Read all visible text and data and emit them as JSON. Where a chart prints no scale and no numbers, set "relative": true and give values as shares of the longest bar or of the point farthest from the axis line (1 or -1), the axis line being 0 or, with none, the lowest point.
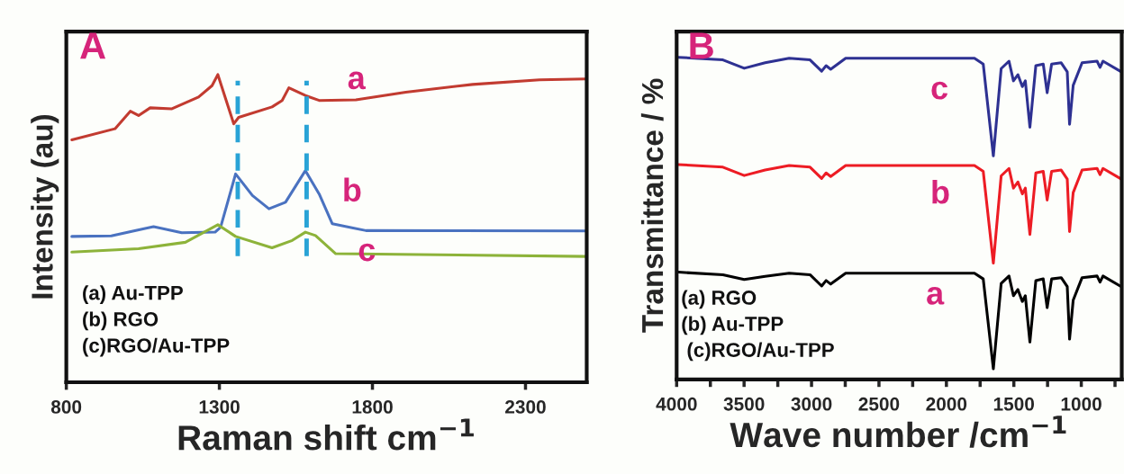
{
  "chart_data": [
    {
      "type": "line",
      "title": "A",
      "xlabel": "Raman shift cm$^{−1}$",
      "ylabel": "Intensity (au)",
      "relative": true,
      "tick_labels": "x",
      "grid": false,
      "legend": false,
      "line_style": "solid",
      "marker": "none",
      "xlim": [
        800,
        2500
      ],
      "xticks": [
        800,
        1300,
        1800,
        2300
      ],
      "series": [
        {
          "name": "a",
          "color": "#c23b30",
          "x": [
            818,
            959,
            1009,
            1036,
            1074,
            1145,
            1232,
            1276,
            1295,
            1347,
            1363,
            1472,
            1505,
            1527,
            1581,
            1626,
            1746,
            1909,
            2127,
            2346,
            2498
          ],
          "values": [
            0.788,
            0.824,
            0.881,
            0.867,
            0.892,
            0.889,
            0.927,
            0.964,
            1.0,
            0.84,
            0.861,
            0.895,
            0.916,
            0.957,
            0.932,
            0.916,
            0.918,
            0.943,
            0.968,
            0.983,
            0.986
          ]
        },
        {
          "name": "b",
          "color": "#4a72c0",
          "x": [
            818,
            947,
            1085,
            1177,
            1286,
            1304,
            1353,
            1408,
            1462,
            1516,
            1581,
            1626,
            1669,
            1779,
            2498
          ],
          "values": [
            0.474,
            0.476,
            0.506,
            0.486,
            0.488,
            0.504,
            0.677,
            0.607,
            0.564,
            0.585,
            0.688,
            0.612,
            0.515,
            0.493,
            0.492
          ]
        },
        {
          "name": "c",
          "color": "#8db33a",
          "x": [
            818,
            1036,
            1189,
            1295,
            1353,
            1472,
            1538,
            1581,
            1614,
            1680,
            2498
          ],
          "values": [
            0.423,
            0.434,
            0.455,
            0.512,
            0.474,
            0.437,
            0.461,
            0.488,
            0.477,
            0.418,
            0.409
          ]
        }
      ],
      "ref_lines": [
        {
          "axis": "x",
          "value": 1360,
          "color": "#29a3d6",
          "line_style": "dashed"
        },
        {
          "axis": "x",
          "value": 1585,
          "color": "#29a3d6",
          "line_style": "dashed"
        }
      ],
      "annotations": [
        "(a) Au-TPP",
        "(b) RGO",
        "(c)RGO/Au-TPP"
      ]
    },
    {
      "type": "line",
      "title": "B",
      "xlabel": "Wave number /cm$^{−1}$",
      "ylabel": "Transmittance / %",
      "relative": true,
      "tick_labels": "x",
      "grid": false,
      "legend": false,
      "line_style": "solid",
      "marker": "none",
      "xlim": [
        4000,
        700
      ],
      "xticks": [
        4000,
        {
          "value": 3750,
          "label": null
        },
        3500,
        {
          "value": 3250,
          "label": null
        },
        3000,
        {
          "value": 2750,
          "label": null
        },
        2500,
        {
          "value": 2250,
          "label": null
        },
        2000,
        {
          "value": 1750,
          "label": null
        },
        1500,
        {
          "value": 1250,
          "label": null
        },
        1000,
        {
          "value": 750,
          "label": null
        }
      ],
      "series": [
        {
          "name": "c",
          "color": "#2e3192",
          "x": [
            3987,
            3657,
            3499,
            3344,
            3166,
            3011,
            2925,
            2892,
            2858,
            2747,
            1792,
            1727,
            1652,
            1594,
            1536,
            1503,
            1470,
            1437,
            1415,
            1381,
            1337,
            1282,
            1253,
            1220,
            1149,
            1104,
            1087,
            1060,
            994,
            883,
            861,
            839,
            703
          ],
          "values": [
            1.0,
            0.992,
            0.966,
            0.983,
            0.997,
            0.992,
            0.957,
            0.974,
            0.963,
            0.997,
            0.997,
            0.979,
            0.694,
            0.965,
            0.988,
            0.927,
            0.946,
            0.909,
            0.927,
            0.783,
            0.974,
            0.979,
            0.89,
            0.979,
            0.983,
            0.955,
            0.792,
            0.913,
            0.983,
            0.988,
            0.969,
            0.988,
            0.955
          ]
        },
        {
          "name": "b",
          "color": "#ed1c24",
          "x": [
            3987,
            3657,
            3499,
            3344,
            3166,
            3011,
            2925,
            2892,
            2858,
            2747,
            1792,
            1727,
            1652,
            1594,
            1536,
            1503,
            1470,
            1437,
            1415,
            1381,
            1337,
            1282,
            1253,
            1220,
            1149,
            1104,
            1087,
            1060,
            994,
            883,
            861,
            839,
            703
          ],
          "values": [
            0.667,
            0.659,
            0.633,
            0.65,
            0.664,
            0.659,
            0.624,
            0.641,
            0.63,
            0.664,
            0.664,
            0.646,
            0.361,
            0.632,
            0.655,
            0.594,
            0.613,
            0.576,
            0.594,
            0.45,
            0.641,
            0.646,
            0.557,
            0.646,
            0.65,
            0.622,
            0.459,
            0.58,
            0.65,
            0.655,
            0.636,
            0.655,
            0.622
          ]
        },
        {
          "name": "a",
          "color": "#000000",
          "x": [
            3987,
            3657,
            3499,
            3344,
            3166,
            3011,
            2925,
            2892,
            2858,
            2747,
            1792,
            1727,
            1652,
            1594,
            1536,
            1503,
            1470,
            1437,
            1415,
            1381,
            1337,
            1282,
            1253,
            1220,
            1149,
            1104,
            1087,
            1060,
            994,
            883,
            861,
            839,
            703
          ],
          "values": [
            0.333,
            0.325,
            0.31,
            0.32,
            0.33,
            0.325,
            0.29,
            0.307,
            0.296,
            0.33,
            0.33,
            0.312,
            0.033,
            0.298,
            0.321,
            0.26,
            0.279,
            0.242,
            0.26,
            0.116,
            0.307,
            0.312,
            0.223,
            0.312,
            0.316,
            0.288,
            0.125,
            0.246,
            0.316,
            0.321,
            0.302,
            0.321,
            0.288
          ]
        }
      ],
      "annotations": [
        "(a) RGO",
        "(b) Au-TPP",
        " (c)RGO/Au-TPP"
      ]
    }
  ]
}
